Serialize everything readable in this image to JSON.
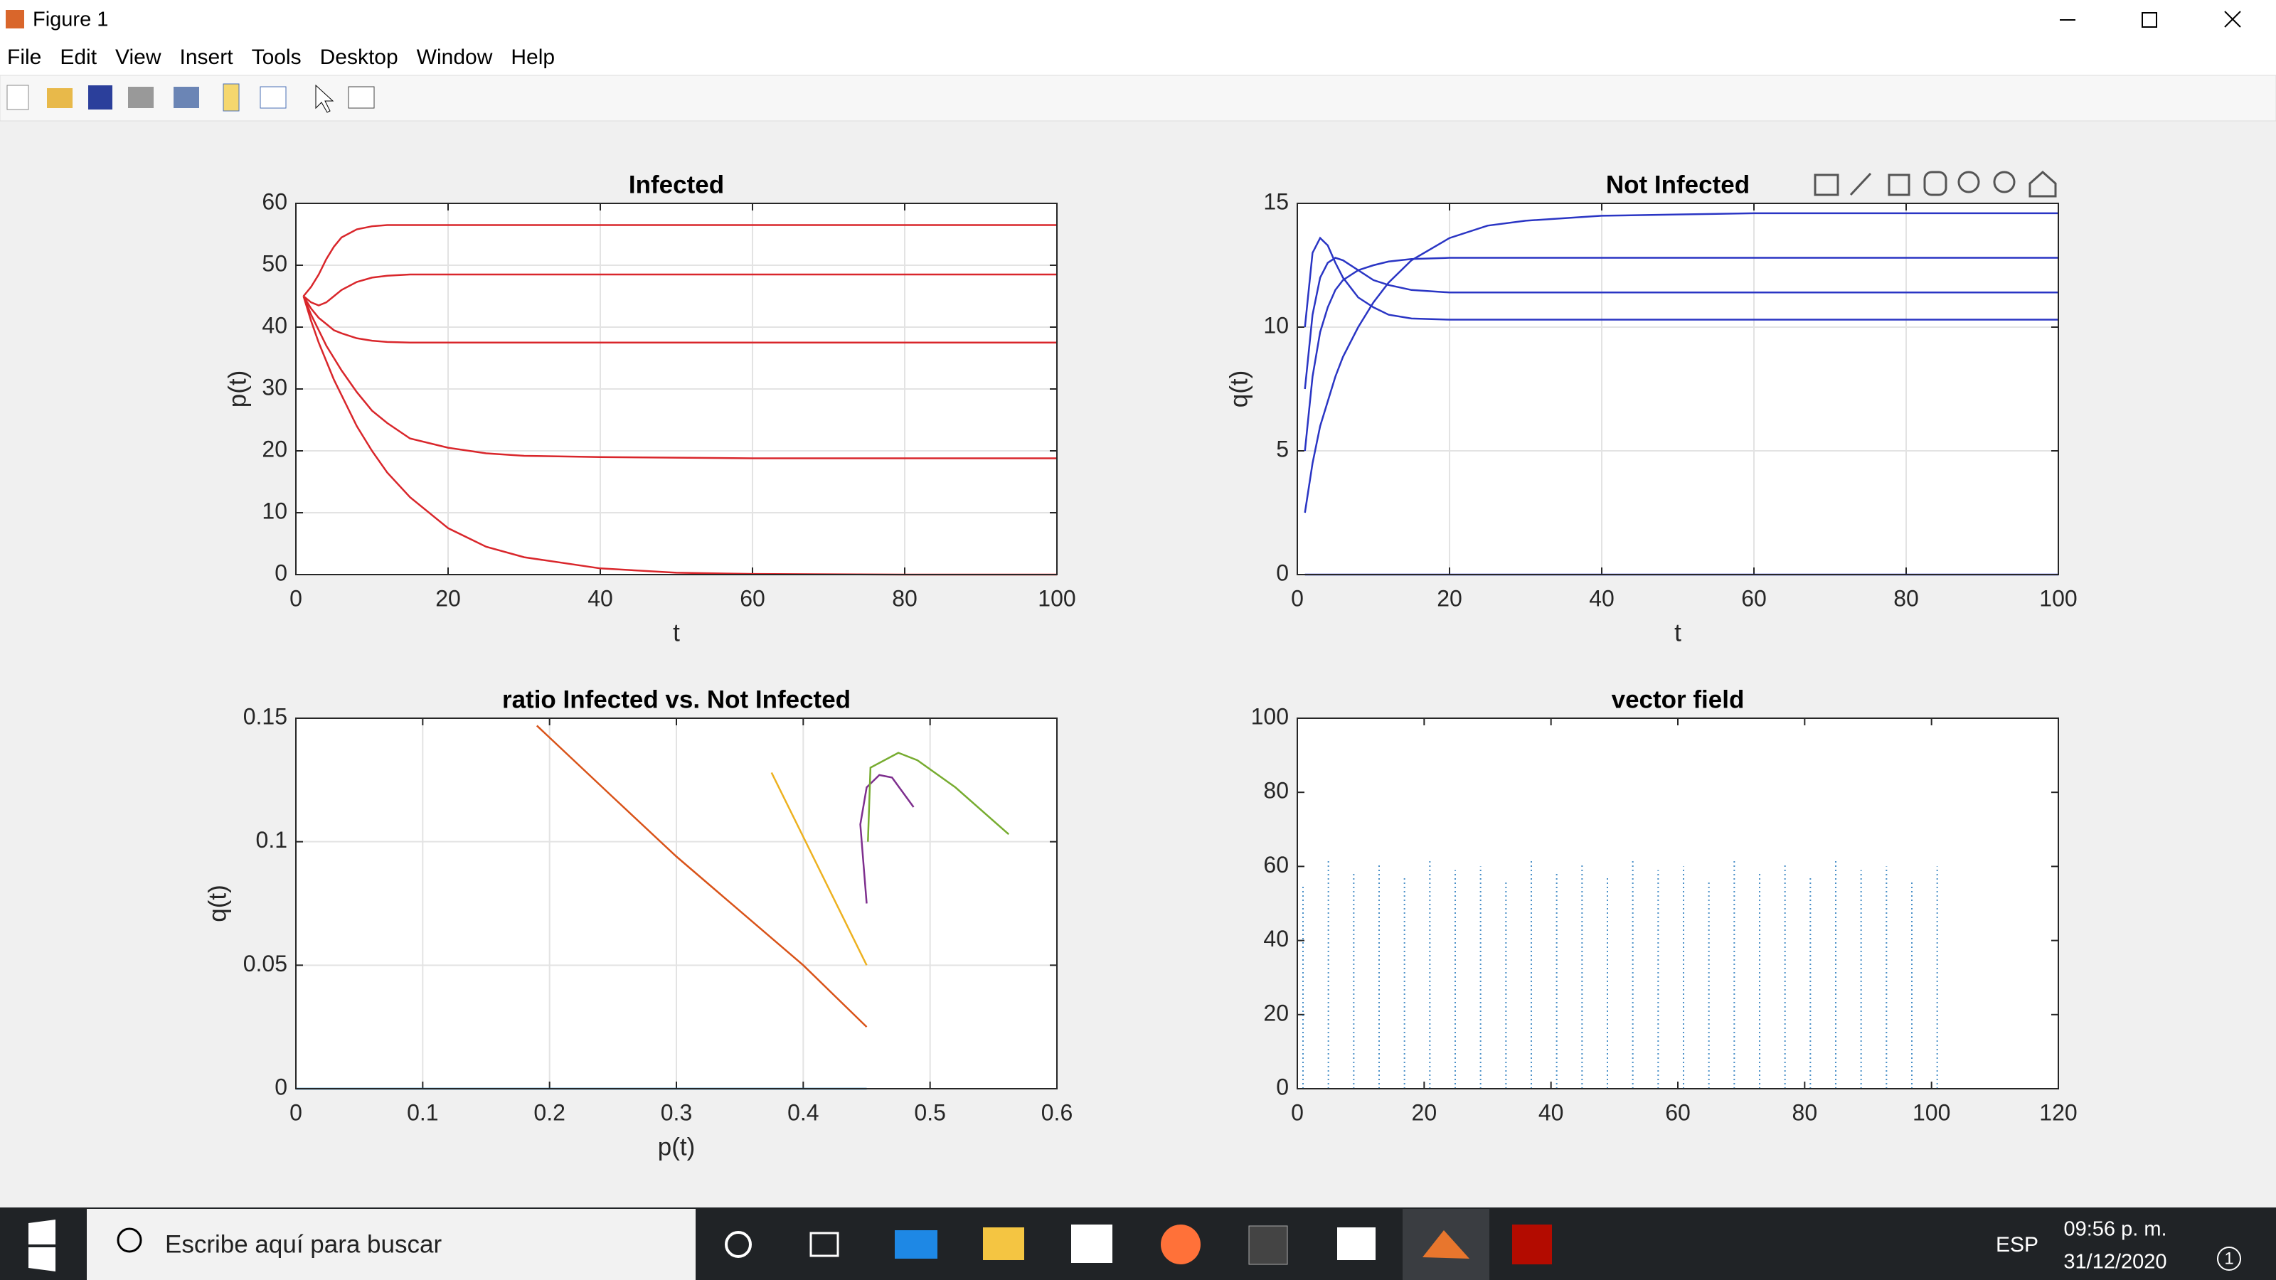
{
  "window": {
    "title": "Figure 1",
    "menu": [
      "File",
      "Edit",
      "View",
      "Insert",
      "Tools",
      "Desktop",
      "Window",
      "Help"
    ]
  },
  "chart_data": [
    {
      "type": "line",
      "title": "Infected",
      "xlabel": "t",
      "ylabel": "p(t)",
      "grid": true,
      "xlim": [
        0,
        100
      ],
      "ylim": [
        0,
        60
      ],
      "xticks": [
        0,
        20,
        40,
        60,
        80,
        100
      ],
      "yticks": [
        0,
        10,
        20,
        30,
        40,
        50,
        60
      ],
      "x": [
        1,
        2,
        3,
        4,
        5,
        6,
        8,
        10,
        12,
        15,
        20,
        25,
        30,
        40,
        50,
        60,
        80,
        100
      ],
      "series": [
        {
          "color": "#d9262b",
          "values": [
            45,
            46.5,
            48.5,
            51,
            53,
            54.5,
            55.8,
            56.3,
            56.5,
            56.5,
            56.5,
            56.5,
            56.5,
            56.5,
            56.5,
            56.5,
            56.5,
            56.5
          ]
        },
        {
          "color": "#d9262b",
          "values": [
            45,
            44,
            43.5,
            44,
            45,
            46,
            47.3,
            48,
            48.3,
            48.5,
            48.5,
            48.5,
            48.5,
            48.5,
            48.5,
            48.5,
            48.5,
            48.5
          ]
        },
        {
          "color": "#d9262b",
          "values": [
            45,
            43,
            41.5,
            40.5,
            39.5,
            39,
            38.2,
            37.8,
            37.6,
            37.5,
            37.5,
            37.5,
            37.5,
            37.5,
            37.5,
            37.5,
            37.5,
            37.5
          ]
        },
        {
          "color": "#d9262b",
          "values": [
            45,
            42,
            39.5,
            37,
            35,
            33,
            29.5,
            26.5,
            24.5,
            22,
            20.5,
            19.6,
            19.2,
            19,
            18.9,
            18.8,
            18.8,
            18.8
          ]
        },
        {
          "color": "#d9262b",
          "values": [
            45,
            41,
            37.5,
            34.5,
            31.5,
            29,
            24,
            20,
            16.5,
            12.5,
            7.5,
            4.5,
            2.8,
            1,
            0.3,
            0.1,
            0,
            0
          ]
        }
      ]
    },
    {
      "type": "line",
      "title": "Not Infected",
      "xlabel": "t",
      "ylabel": "q(t)",
      "grid": true,
      "xlim": [
        0,
        100
      ],
      "ylim": [
        0,
        15
      ],
      "xticks": [
        0,
        20,
        40,
        60,
        80,
        100
      ],
      "yticks": [
        0,
        5,
        10,
        15
      ],
      "x": [
        1,
        2,
        3,
        4,
        5,
        6,
        8,
        10,
        12,
        15,
        20,
        25,
        30,
        40,
        50,
        60,
        80,
        100
      ],
      "series": [
        {
          "color": "#2a35c4",
          "values": [
            2.5,
            4.5,
            6,
            7,
            8,
            8.8,
            10,
            11,
            11.8,
            12.7,
            13.6,
            14.1,
            14.3,
            14.5,
            14.55,
            14.6,
            14.6,
            14.6
          ]
        },
        {
          "color": "#2a35c4",
          "values": [
            10,
            13,
            13.6,
            13.3,
            12.6,
            12,
            11.2,
            10.8,
            10.5,
            10.35,
            10.3,
            10.3,
            10.3,
            10.3,
            10.3,
            10.3,
            10.3,
            10.3
          ]
        },
        {
          "color": "#2a35c4",
          "values": [
            7.5,
            10.5,
            12,
            12.6,
            12.8,
            12.7,
            12.3,
            11.9,
            11.7,
            11.5,
            11.4,
            11.4,
            11.4,
            11.4,
            11.4,
            11.4,
            11.4,
            11.4
          ]
        },
        {
          "color": "#2a35c4",
          "values": [
            5,
            8,
            9.8,
            10.8,
            11.5,
            11.9,
            12.3,
            12.5,
            12.65,
            12.75,
            12.8,
            12.8,
            12.8,
            12.8,
            12.8,
            12.8,
            12.8,
            12.8
          ]
        },
        {
          "color": "#2a35c4",
          "values": [
            0,
            0,
            0,
            0,
            0,
            0,
            0,
            0,
            0,
            0,
            0,
            0,
            0,
            0,
            0,
            0,
            0,
            0
          ]
        }
      ]
    },
    {
      "type": "line",
      "title": "ratio Infected vs. Not Infected",
      "xlabel": "p(t)",
      "ylabel": "q(t)",
      "grid": true,
      "xlim": [
        0,
        0.6
      ],
      "ylim": [
        0,
        0.15
      ],
      "xticks": [
        0,
        0.1,
        0.2,
        0.3,
        0.4,
        0.5,
        0.6
      ],
      "yticks": [
        0,
        0.05,
        0.1,
        0.15
      ],
      "series": [
        {
          "color": "#0072bd",
          "x": [
            0,
            0.45
          ],
          "values": [
            0,
            0
          ]
        },
        {
          "color": "#d95319",
          "x": [
            0.45,
            0.4,
            0.35,
            0.3,
            0.25,
            0.19
          ],
          "values": [
            0.025,
            0.05,
            0.072,
            0.094,
            0.118,
            0.147
          ]
        },
        {
          "color": "#edb120",
          "x": [
            0.45,
            0.375
          ],
          "values": [
            0.05,
            0.128
          ]
        },
        {
          "color": "#7e2f8e",
          "x": [
            0.45,
            0.445,
            0.45,
            0.46,
            0.47,
            0.487
          ],
          "values": [
            0.075,
            0.107,
            0.122,
            0.127,
            0.126,
            0.114
          ]
        },
        {
          "color": "#77ac30",
          "x": [
            0.451,
            0.453,
            0.475,
            0.49,
            0.52,
            0.562
          ],
          "values": [
            0.1,
            0.13,
            0.136,
            0.133,
            0.122,
            0.103
          ]
        }
      ]
    },
    {
      "type": "quiver",
      "title": "vector field",
      "grid": false,
      "color": "#4a90c8",
      "xlim": [
        0,
        120
      ],
      "ylim": [
        0,
        100
      ],
      "xticks": [
        0,
        20,
        40,
        60,
        80,
        100,
        120
      ],
      "yticks": [
        0,
        20,
        40,
        60,
        80,
        100
      ],
      "x": [
        0,
        4,
        8,
        12,
        16,
        20,
        24,
        28,
        32,
        36,
        40,
        44,
        48,
        52,
        56,
        60,
        64,
        68,
        72,
        76,
        80,
        84,
        88,
        92,
        96,
        100
      ],
      "values": [
        55,
        62,
        58,
        61,
        57,
        62,
        59,
        60,
        56,
        62,
        58,
        61,
        57,
        62,
        59,
        60,
        56,
        62,
        58,
        61,
        57,
        62,
        59,
        60,
        56,
        60
      ]
    }
  ],
  "taskbar": {
    "search": "Escribe aquí para buscar",
    "language": "ESP",
    "time": "09:56 p. m.",
    "date": "31/12/2020",
    "notifications": "1"
  }
}
